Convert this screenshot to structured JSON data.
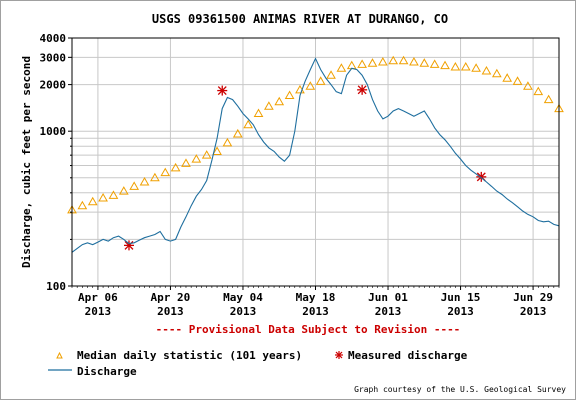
{
  "chart_data": {
    "type": "line",
    "title": "USGS 09361500 ANIMAS RIVER AT DURANGO, CO",
    "ylabel": "Discharge, cubic feet per second",
    "y_scale": "log",
    "ylim": [
      100,
      4000
    ],
    "xlim": [
      "2013-04-01",
      "2013-07-04"
    ],
    "y_ticks": [
      100,
      1000,
      2000,
      3000,
      4000
    ],
    "y_minor_ticks": [
      200,
      300,
      400,
      500,
      600,
      700,
      800,
      900
    ],
    "x_ticks": [
      {
        "date": "2013-04-06",
        "label1": "Apr 06",
        "label2": "2013"
      },
      {
        "date": "2013-04-20",
        "label1": "Apr 20",
        "label2": "2013"
      },
      {
        "date": "2013-05-04",
        "label1": "May 04",
        "label2": "2013"
      },
      {
        "date": "2013-05-18",
        "label1": "May 18",
        "label2": "2013"
      },
      {
        "date": "2013-06-01",
        "label1": "Jun 01",
        "label2": "2013"
      },
      {
        "date": "2013-06-15",
        "label1": "Jun 15",
        "label2": "2013"
      },
      {
        "date": "2013-06-29",
        "label1": "Jun 29",
        "label2": "2013"
      }
    ],
    "grid": true,
    "annotation": "---- Provisional Data Subject to Revision ----",
    "legend_position": "bottom",
    "series": [
      {
        "name": "Median daily statistic (101 years)",
        "style": "triangle-markers",
        "color": "#f0a000",
        "points": [
          [
            "2013-04-01",
            310
          ],
          [
            "2013-04-03",
            330
          ],
          [
            "2013-04-05",
            350
          ],
          [
            "2013-04-07",
            370
          ],
          [
            "2013-04-09",
            385
          ],
          [
            "2013-04-11",
            410
          ],
          [
            "2013-04-13",
            440
          ],
          [
            "2013-04-15",
            470
          ],
          [
            "2013-04-17",
            500
          ],
          [
            "2013-04-19",
            540
          ],
          [
            "2013-04-21",
            580
          ],
          [
            "2013-04-23",
            620
          ],
          [
            "2013-04-25",
            660
          ],
          [
            "2013-04-27",
            700
          ],
          [
            "2013-04-29",
            740
          ],
          [
            "2013-05-01",
            840
          ],
          [
            "2013-05-03",
            960
          ],
          [
            "2013-05-05",
            1100
          ],
          [
            "2013-05-07",
            1300
          ],
          [
            "2013-05-09",
            1450
          ],
          [
            "2013-05-11",
            1550
          ],
          [
            "2013-05-13",
            1700
          ],
          [
            "2013-05-15",
            1850
          ],
          [
            "2013-05-17",
            1950
          ],
          [
            "2013-05-19",
            2100
          ],
          [
            "2013-05-21",
            2300
          ],
          [
            "2013-05-23",
            2550
          ],
          [
            "2013-05-25",
            2650
          ],
          [
            "2013-05-27",
            2700
          ],
          [
            "2013-05-29",
            2750
          ],
          [
            "2013-05-31",
            2800
          ],
          [
            "2013-06-02",
            2850
          ],
          [
            "2013-06-04",
            2850
          ],
          [
            "2013-06-06",
            2800
          ],
          [
            "2013-06-08",
            2750
          ],
          [
            "2013-06-10",
            2700
          ],
          [
            "2013-06-12",
            2650
          ],
          [
            "2013-06-14",
            2600
          ],
          [
            "2013-06-16",
            2600
          ],
          [
            "2013-06-18",
            2550
          ],
          [
            "2013-06-20",
            2450
          ],
          [
            "2013-06-22",
            2350
          ],
          [
            "2013-06-24",
            2200
          ],
          [
            "2013-06-26",
            2100
          ],
          [
            "2013-06-28",
            1950
          ],
          [
            "2013-06-30",
            1800
          ],
          [
            "2013-07-02",
            1600
          ],
          [
            "2013-07-04",
            1400
          ]
        ]
      },
      {
        "name": "Measured discharge",
        "style": "asterisk-markers",
        "color": "#cc0000",
        "points": [
          [
            "2013-04-12",
            183
          ],
          [
            "2013-04-30",
            1830
          ],
          [
            "2013-05-27",
            1850
          ],
          [
            "2013-06-19",
            507
          ]
        ]
      },
      {
        "name": "Discharge",
        "style": "line",
        "color": "#1f6f9f",
        "points": [
          [
            "2013-04-01",
            165
          ],
          [
            "2013-04-02",
            175
          ],
          [
            "2013-04-03",
            185
          ],
          [
            "2013-04-04",
            190
          ],
          [
            "2013-04-05",
            185
          ],
          [
            "2013-04-06",
            192
          ],
          [
            "2013-04-07",
            200
          ],
          [
            "2013-04-08",
            195
          ],
          [
            "2013-04-09",
            205
          ],
          [
            "2013-04-10",
            210
          ],
          [
            "2013-04-11",
            200
          ],
          [
            "2013-04-12",
            188
          ],
          [
            "2013-04-13",
            190
          ],
          [
            "2013-04-14",
            198
          ],
          [
            "2013-04-15",
            205
          ],
          [
            "2013-04-16",
            210
          ],
          [
            "2013-04-17",
            215
          ],
          [
            "2013-04-18",
            225
          ],
          [
            "2013-04-19",
            200
          ],
          [
            "2013-04-20",
            195
          ],
          [
            "2013-04-21",
            200
          ],
          [
            "2013-04-22",
            240
          ],
          [
            "2013-04-23",
            280
          ],
          [
            "2013-04-24",
            330
          ],
          [
            "2013-04-25",
            380
          ],
          [
            "2013-04-26",
            420
          ],
          [
            "2013-04-27",
            480
          ],
          [
            "2013-04-28",
            650
          ],
          [
            "2013-04-29",
            900
          ],
          [
            "2013-04-30",
            1400
          ],
          [
            "2013-05-01",
            1650
          ],
          [
            "2013-05-02",
            1600
          ],
          [
            "2013-05-03",
            1450
          ],
          [
            "2013-05-04",
            1300
          ],
          [
            "2013-05-05",
            1200
          ],
          [
            "2013-05-06",
            1100
          ],
          [
            "2013-05-07",
            950
          ],
          [
            "2013-05-08",
            850
          ],
          [
            "2013-05-09",
            780
          ],
          [
            "2013-05-10",
            740
          ],
          [
            "2013-05-11",
            680
          ],
          [
            "2013-05-12",
            640
          ],
          [
            "2013-05-13",
            700
          ],
          [
            "2013-05-14",
            1000
          ],
          [
            "2013-05-15",
            1700
          ],
          [
            "2013-05-16",
            2100
          ],
          [
            "2013-05-17",
            2500
          ],
          [
            "2013-05-18",
            2950
          ],
          [
            "2013-05-19",
            2500
          ],
          [
            "2013-05-20",
            2200
          ],
          [
            "2013-05-21",
            2000
          ],
          [
            "2013-05-22",
            1800
          ],
          [
            "2013-05-23",
            1750
          ],
          [
            "2013-05-24",
            2300
          ],
          [
            "2013-05-25",
            2550
          ],
          [
            "2013-05-26",
            2500
          ],
          [
            "2013-05-27",
            2300
          ],
          [
            "2013-05-28",
            2000
          ],
          [
            "2013-05-29",
            1600
          ],
          [
            "2013-05-30",
            1350
          ],
          [
            "2013-05-31",
            1200
          ],
          [
            "2013-06-01",
            1250
          ],
          [
            "2013-06-02",
            1350
          ],
          [
            "2013-06-03",
            1400
          ],
          [
            "2013-06-04",
            1350
          ],
          [
            "2013-06-05",
            1300
          ],
          [
            "2013-06-06",
            1250
          ],
          [
            "2013-06-07",
            1300
          ],
          [
            "2013-06-08",
            1350
          ],
          [
            "2013-06-09",
            1200
          ],
          [
            "2013-06-10",
            1050
          ],
          [
            "2013-06-11",
            950
          ],
          [
            "2013-06-12",
            880
          ],
          [
            "2013-06-13",
            800
          ],
          [
            "2013-06-14",
            720
          ],
          [
            "2013-06-15",
            660
          ],
          [
            "2013-06-16",
            600
          ],
          [
            "2013-06-17",
            560
          ],
          [
            "2013-06-18",
            530
          ],
          [
            "2013-06-19",
            500
          ],
          [
            "2013-06-20",
            470
          ],
          [
            "2013-06-21",
            440
          ],
          [
            "2013-06-22",
            410
          ],
          [
            "2013-06-23",
            390
          ],
          [
            "2013-06-24",
            365
          ],
          [
            "2013-06-25",
            345
          ],
          [
            "2013-06-26",
            325
          ],
          [
            "2013-06-27",
            305
          ],
          [
            "2013-06-28",
            290
          ],
          [
            "2013-06-29",
            280
          ],
          [
            "2013-06-30",
            265
          ],
          [
            "2013-07-01",
            260
          ],
          [
            "2013-07-02",
            262
          ],
          [
            "2013-07-03",
            250
          ],
          [
            "2013-07-04",
            245
          ]
        ]
      }
    ]
  },
  "legend": {
    "median": "Median daily statistic (101 years)",
    "measured": "Measured discharge",
    "discharge": "Discharge"
  },
  "credit": "Graph courtesy of the U.S. Geological Survey",
  "colors": {
    "median": "#f0a000",
    "measured": "#cc0000",
    "discharge": "#1f6f9f",
    "grid": "#c8c8c8"
  }
}
